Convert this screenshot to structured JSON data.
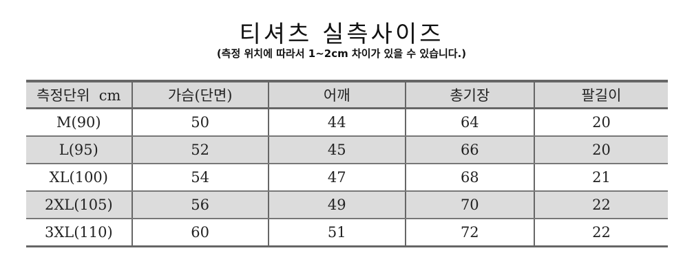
{
  "title": "티셔츠 실측사이즈",
  "subtitle": "(측정 위치에 따라서 1~2cm 차이가 있을 수 있습니다.)",
  "table": {
    "headers": [
      "측정단위  cm",
      "가슴(단면)",
      "어깨",
      "총기장",
      "팔길이"
    ],
    "rows": [
      [
        "M(90)",
        "50",
        "44",
        "64",
        "20"
      ],
      [
        "L(95)",
        "52",
        "45",
        "66",
        "20"
      ],
      [
        "XL(100)",
        "54",
        "47",
        "68",
        "21"
      ],
      [
        "2XL(105)",
        "56",
        "49",
        "70",
        "22"
      ],
      [
        "3XL(110)",
        "60",
        "51",
        "72",
        "22"
      ]
    ]
  }
}
